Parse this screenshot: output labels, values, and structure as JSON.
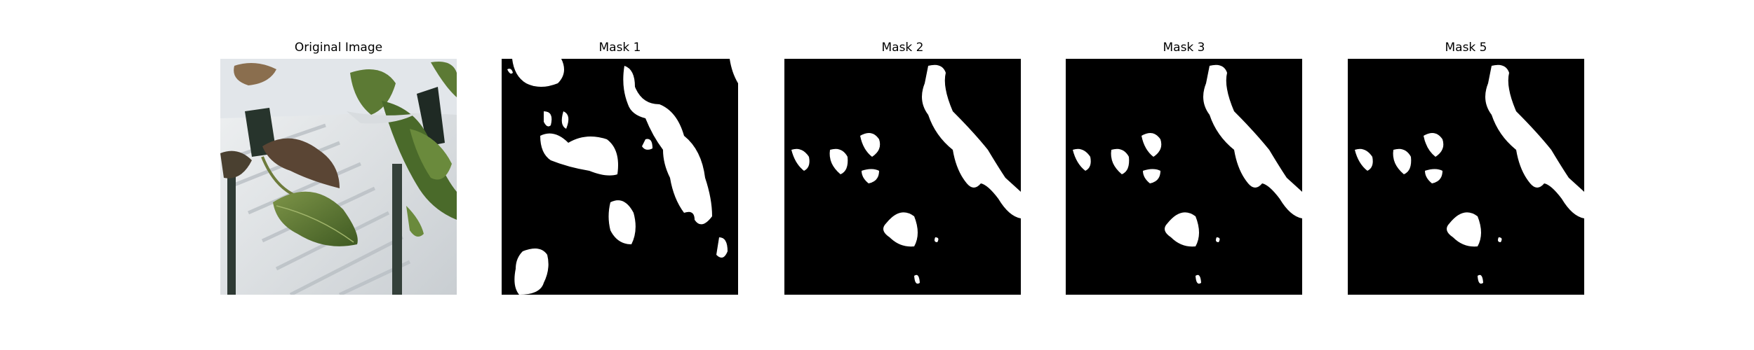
{
  "figure": {
    "panels": [
      {
        "title": "Original Image",
        "kind": "photo"
      },
      {
        "title": "Mask 1",
        "kind": "mask"
      },
      {
        "title": "Mask 2",
        "kind": "mask"
      },
      {
        "title": "Mask 3",
        "kind": "mask"
      },
      {
        "title": "Mask 5",
        "kind": "mask"
      }
    ],
    "colors": {
      "mask_background": "#000000",
      "mask_foreground": "#ffffff",
      "leaf_green": "#4f6a2c",
      "wall_white": "#e6e9eb",
      "stem_dark": "#27342c"
    }
  }
}
